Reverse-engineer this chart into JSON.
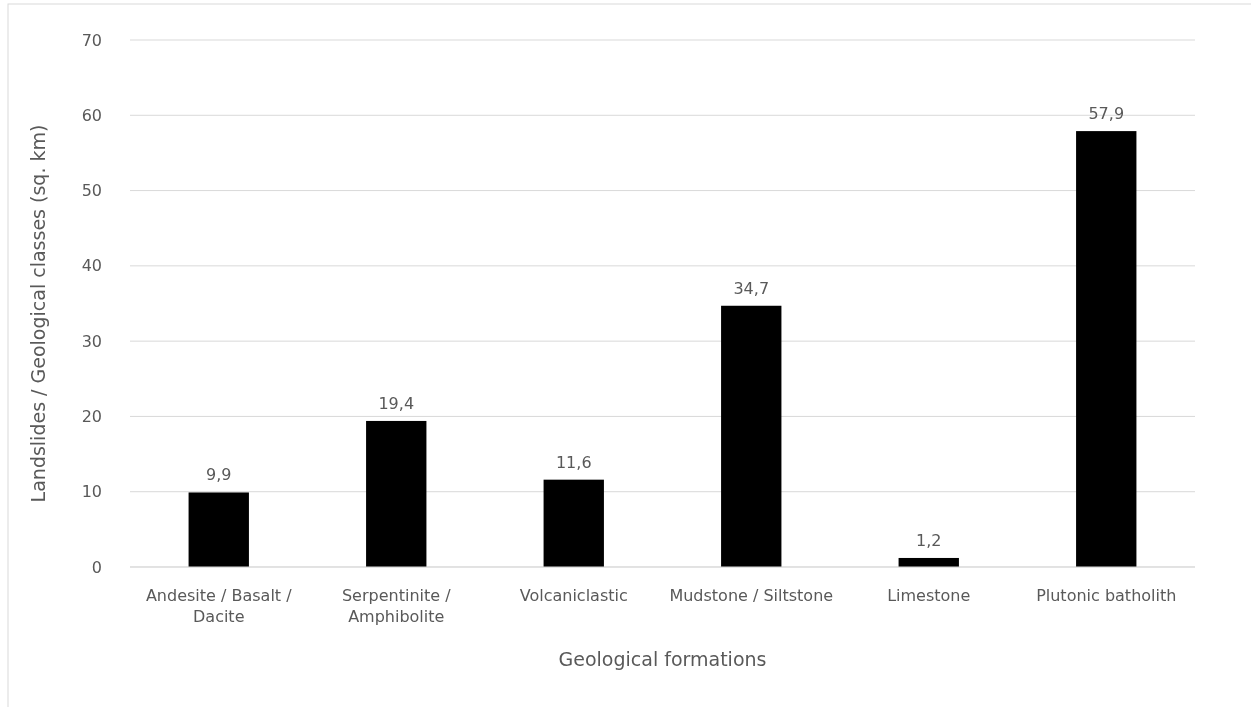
{
  "chart_data": {
    "type": "bar",
    "xlabel": "Geological formations",
    "ylabel": "Landslides / Geological classes (sq. km)",
    "categories": [
      "Andesite / Basalt / Dacite",
      "Serpentinite / Amphibolite",
      "Volcaniclastic",
      "Mudstone / Siltstone",
      "Limestone",
      "Plutonic batholith"
    ],
    "values": [
      9.9,
      19.4,
      11.6,
      34.7,
      1.2,
      57.9
    ],
    "value_labels": [
      "9,9",
      "19,4",
      "11,6",
      "34,7",
      "1,2",
      "57,9"
    ],
    "color": "#000000",
    "ylim": [
      0,
      70
    ],
    "yticks": [
      0,
      10,
      20,
      30,
      40,
      50,
      60,
      70
    ],
    "grid": "y"
  }
}
